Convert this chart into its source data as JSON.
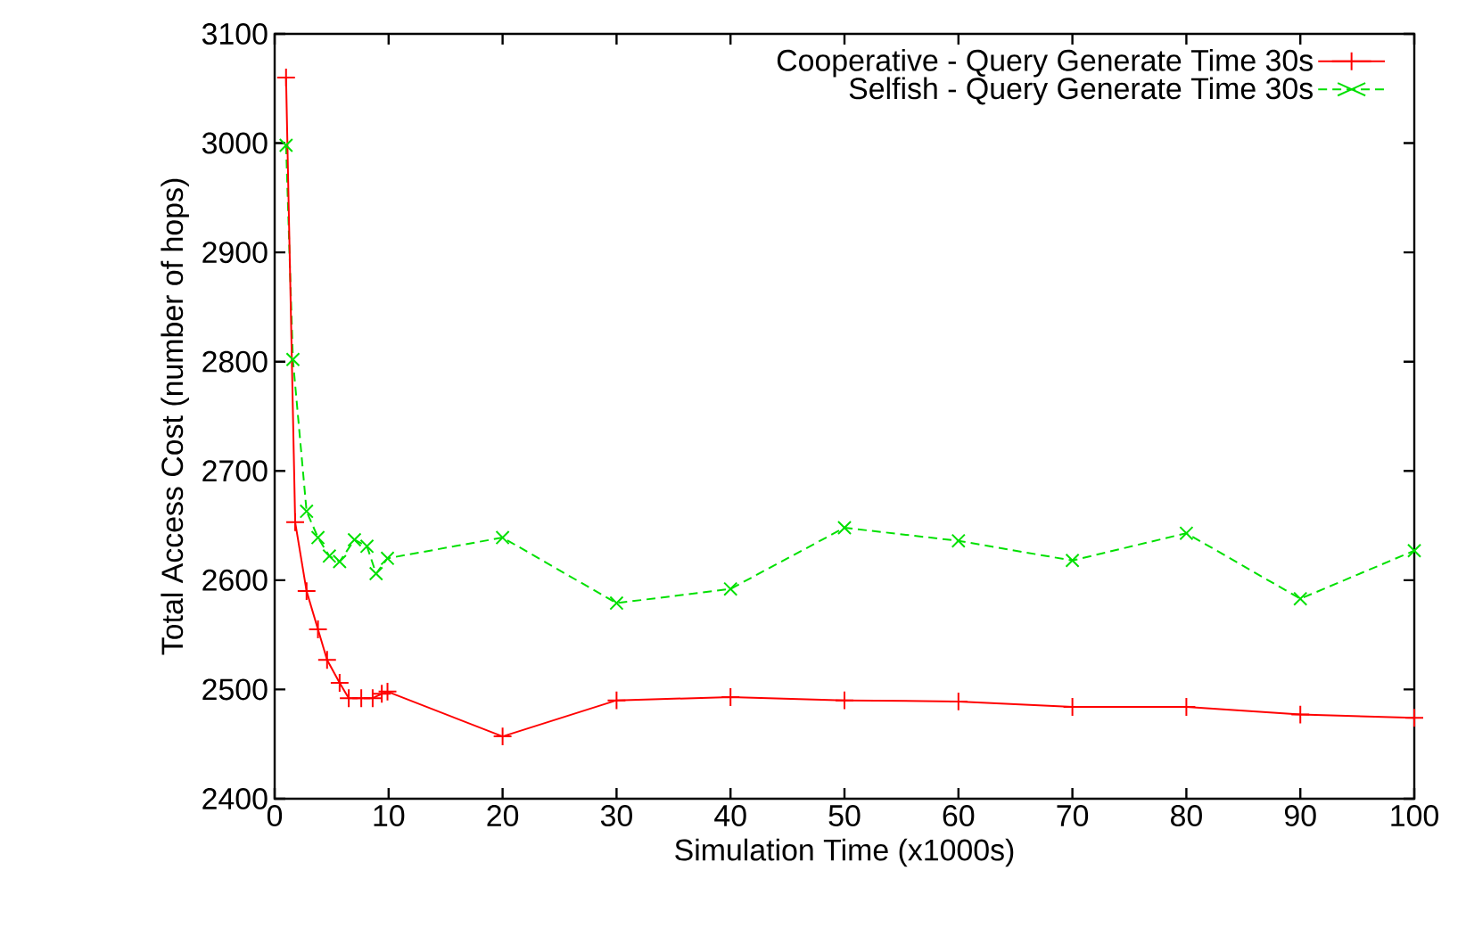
{
  "chart_data": {
    "type": "line",
    "xlabel": "Simulation Time (x1000s)",
    "ylabel": "Total Access Cost (number of hops)",
    "xlim": [
      0,
      100
    ],
    "ylim": [
      2400,
      3100
    ],
    "xticks": [
      0,
      10,
      20,
      30,
      40,
      50,
      60,
      70,
      80,
      90,
      100
    ],
    "yticks": [
      2400,
      2500,
      2600,
      2700,
      2800,
      2900,
      3000,
      3100
    ],
    "grid": false,
    "legend": "top right",
    "series": [
      {
        "name": "Cooperative - Query Generate Time 30s",
        "color": "#ff0000",
        "marker": "plus",
        "line_style": "solid",
        "x": [
          1,
          1.8,
          2.8,
          3.8,
          4.6,
          5.7,
          6.5,
          7.6,
          8.6,
          9.4,
          9.9,
          20,
          30,
          40,
          50,
          60,
          70,
          80,
          90,
          100
        ],
        "values": [
          3060,
          2653,
          2590,
          2555,
          2527,
          2506,
          2492,
          2492,
          2492,
          2496,
          2498,
          2457,
          2490,
          2493,
          2490,
          2489,
          2484,
          2484,
          2477,
          2474
        ]
      },
      {
        "name": "Selfish - Query Generate Time 30s",
        "color": "#00e000",
        "marker": "cross",
        "line_style": "dashed",
        "x": [
          1,
          1.6,
          2.8,
          3.8,
          4.8,
          5.7,
          7,
          8.1,
          8.9,
          9.9,
          20,
          30,
          40,
          50,
          60,
          70,
          80,
          90,
          100
        ],
        "values": [
          2998,
          2802,
          2663,
          2639,
          2622,
          2617,
          2637,
          2631,
          2606,
          2620,
          2639,
          2579,
          2592,
          2648,
          2636,
          2618,
          2643,
          2583,
          2627
        ]
      }
    ]
  }
}
